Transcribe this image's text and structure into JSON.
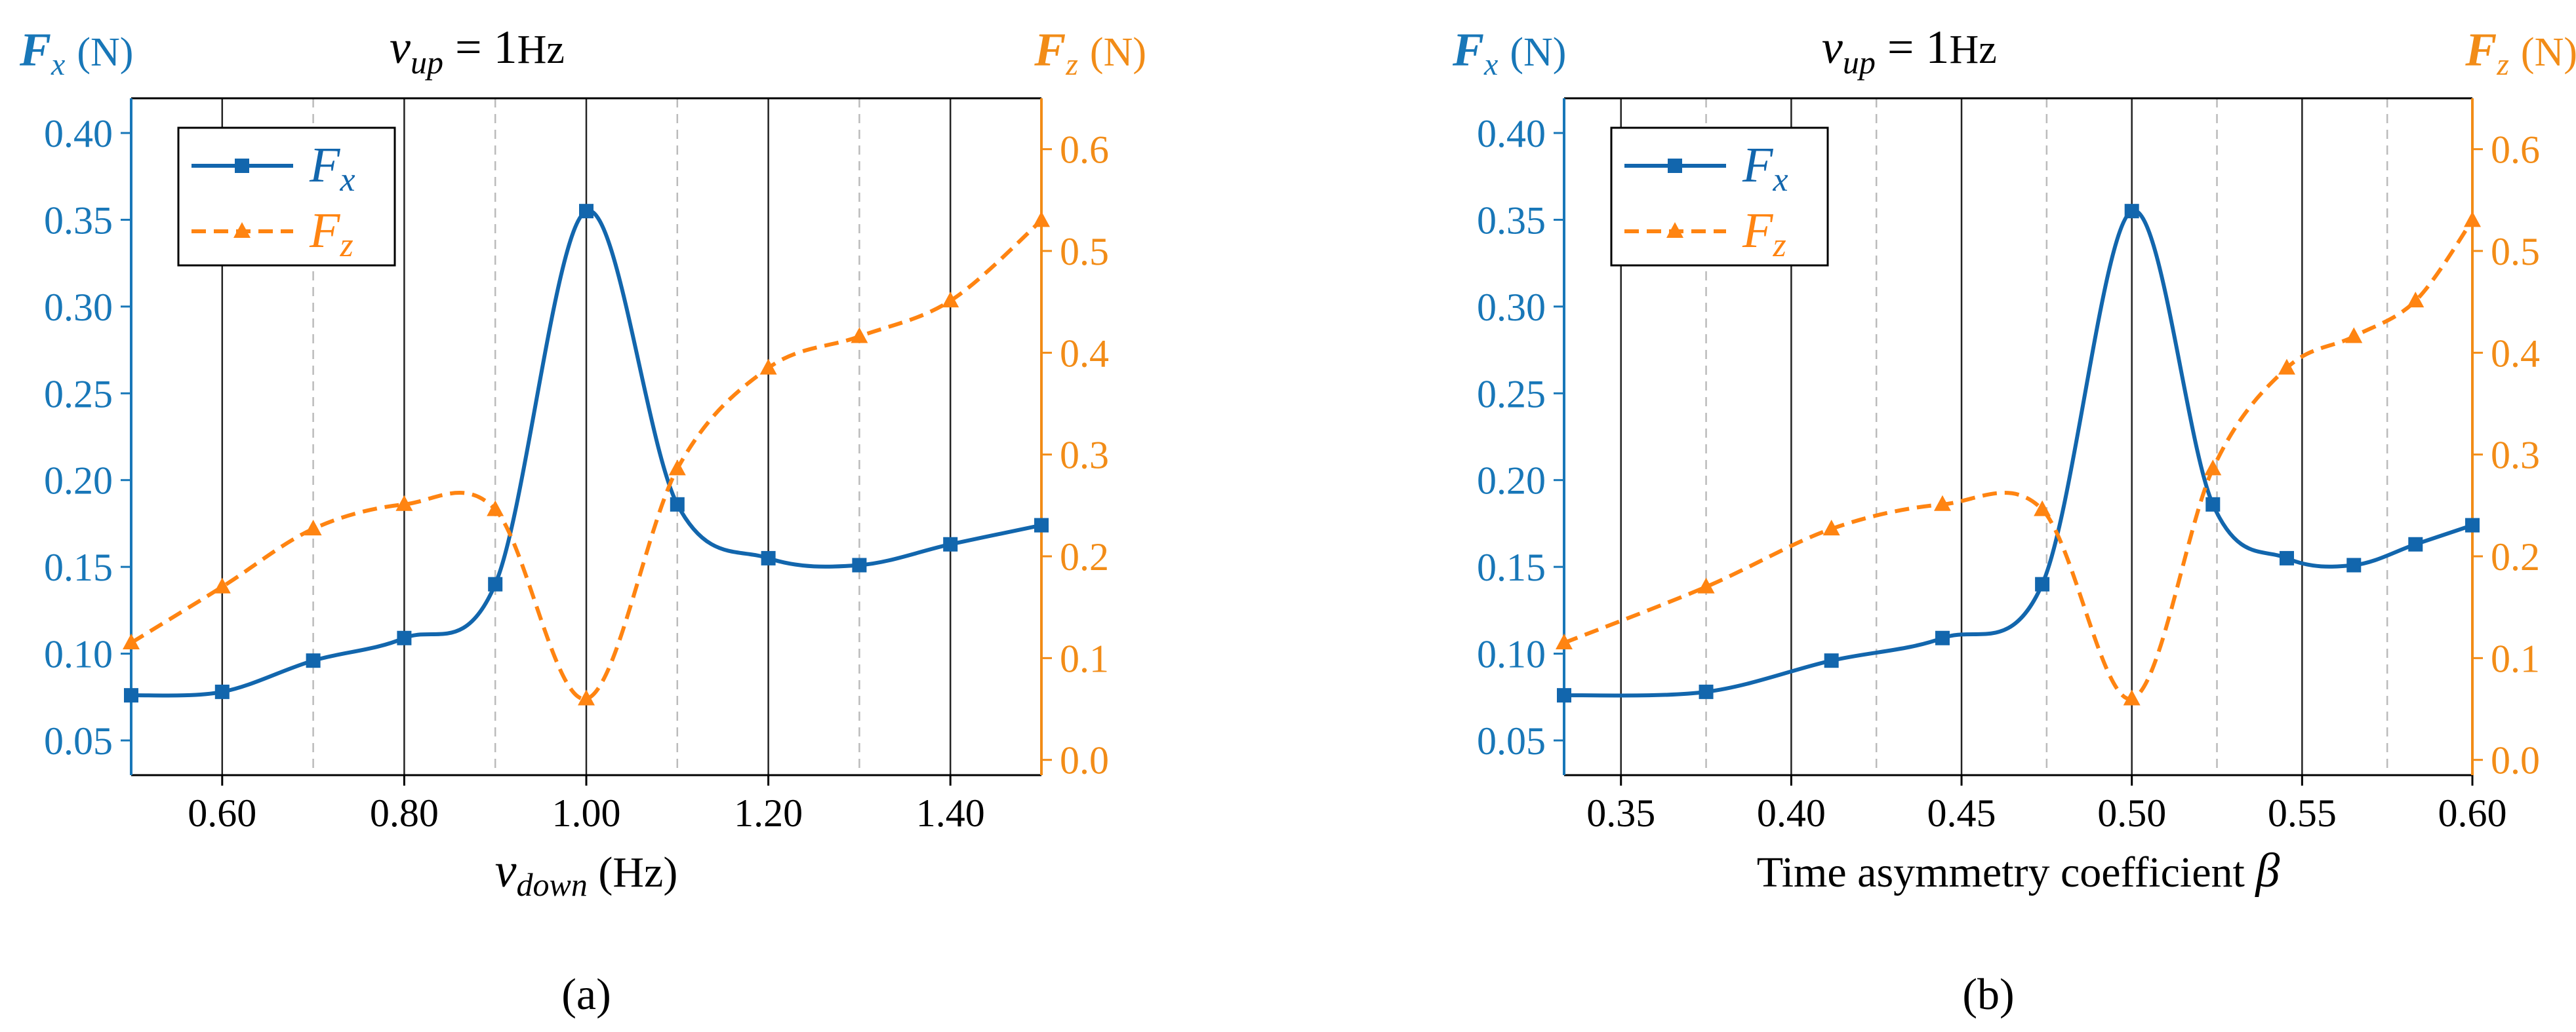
{
  "colors": {
    "fx": "#1266ad",
    "fz": "#ff8411",
    "left_axis": "#1877b8",
    "right_axis": "#f28c17",
    "grid_solid": "#222222",
    "grid_dashed": "#bbbbbb"
  },
  "chart_data": [
    {
      "panel_label": "(a)",
      "type": "line",
      "title_var": "v",
      "title_sub": "up",
      "title_rest": " = 1",
      "title_unit": "Hz",
      "xlabel_var": "v",
      "xlabel_sub": "down",
      "xlabel_unit": " (Hz)",
      "xlim": [
        0.5,
        1.5
      ],
      "x_ticks": [
        0.6,
        0.8,
        1.0,
        1.2,
        1.4
      ],
      "x_tick_labels": [
        "0.60",
        "0.80",
        "1.00",
        "1.20",
        "1.40"
      ],
      "grid_solid": [
        0.6,
        0.8,
        1.0,
        1.2,
        1.4
      ],
      "grid_dashed": [
        0.7,
        0.9,
        1.1,
        1.3
      ],
      "y_left": {
        "label_var": "F",
        "label_sub": "x",
        "label_unit": "(N)",
        "lim": [
          0.03,
          0.42
        ],
        "ticks": [
          0.05,
          0.1,
          0.15,
          0.2,
          0.25,
          0.3,
          0.35,
          0.4
        ],
        "tick_labels": [
          "0.05",
          "0.10",
          "0.15",
          "0.20",
          "0.25",
          "0.30",
          "0.35",
          "0.40"
        ]
      },
      "y_right": {
        "label_var": "F",
        "label_sub": "z",
        "label_unit": "(N)",
        "lim": [
          -0.015,
          0.65
        ],
        "ticks": [
          0.0,
          0.1,
          0.2,
          0.3,
          0.4,
          0.5,
          0.6
        ],
        "tick_labels": [
          "0.0",
          "0.1",
          "0.2",
          "0.3",
          "0.4",
          "0.5",
          "0.6"
        ]
      },
      "series": [
        {
          "name": "F",
          "sub": "x",
          "axis": "left",
          "marker": "square",
          "dash": "solid",
          "x": [
            0.5,
            0.6,
            0.7,
            0.8,
            0.9,
            1.0,
            1.1,
            1.2,
            1.3,
            1.4,
            1.5
          ],
          "values": [
            0.076,
            0.078,
            0.096,
            0.109,
            0.14,
            0.355,
            0.186,
            0.155,
            0.151,
            0.163,
            0.174
          ]
        },
        {
          "name": "F",
          "sub": "z",
          "axis": "right",
          "marker": "triangle",
          "dash": "dashed",
          "x": [
            0.5,
            0.6,
            0.7,
            0.8,
            0.9,
            1.0,
            1.1,
            1.2,
            1.3,
            1.4,
            1.5
          ],
          "values": [
            0.115,
            0.17,
            0.227,
            0.251,
            0.246,
            0.06,
            0.286,
            0.385,
            0.416,
            0.451,
            0.53
          ]
        }
      ],
      "legend_position": "top-left"
    },
    {
      "panel_label": "(b)",
      "type": "line",
      "title_var": "v",
      "title_sub": "up",
      "title_rest": " = 1",
      "title_unit": "Hz",
      "xlabel_text": "Time asymmetry coefficient ",
      "xlabel_symbol": "β",
      "xlim": [
        0.3333,
        0.6
      ],
      "x_ticks": [
        0.35,
        0.4,
        0.45,
        0.5,
        0.55,
        0.6
      ],
      "x_tick_labels": [
        "0.35",
        "0.40",
        "0.45",
        "0.50",
        "0.55",
        "0.60"
      ],
      "grid_solid": [
        0.35,
        0.4,
        0.45,
        0.5,
        0.55
      ],
      "grid_dashed": [
        0.375,
        0.425,
        0.475,
        0.525,
        0.575
      ],
      "y_left": {
        "label_var": "F",
        "label_sub": "x",
        "label_unit": "(N)",
        "lim": [
          0.03,
          0.42
        ],
        "ticks": [
          0.05,
          0.1,
          0.15,
          0.2,
          0.25,
          0.3,
          0.35,
          0.4
        ],
        "tick_labels": [
          "0.05",
          "0.10",
          "0.15",
          "0.20",
          "0.25",
          "0.30",
          "0.35",
          "0.40"
        ]
      },
      "y_right": {
        "label_var": "F",
        "label_sub": "z",
        "label_unit": "(N)",
        "lim": [
          -0.015,
          0.65
        ],
        "ticks": [
          0.0,
          0.1,
          0.2,
          0.3,
          0.4,
          0.5,
          0.6
        ],
        "tick_labels": [
          "0.0",
          "0.1",
          "0.2",
          "0.3",
          "0.4",
          "0.5",
          "0.6"
        ]
      },
      "series": [
        {
          "name": "F",
          "sub": "x",
          "axis": "left",
          "marker": "square",
          "dash": "solid",
          "x": [
            0.3333,
            0.375,
            0.4118,
            0.4444,
            0.4737,
            0.5,
            0.5238,
            0.5455,
            0.5652,
            0.5833,
            0.6
          ],
          "values": [
            0.076,
            0.078,
            0.096,
            0.109,
            0.14,
            0.355,
            0.186,
            0.155,
            0.151,
            0.163,
            0.174
          ]
        },
        {
          "name": "F",
          "sub": "z",
          "axis": "right",
          "marker": "triangle",
          "dash": "dashed",
          "x": [
            0.3333,
            0.375,
            0.4118,
            0.4444,
            0.4737,
            0.5,
            0.5238,
            0.5455,
            0.5652,
            0.5833,
            0.6
          ],
          "values": [
            0.115,
            0.17,
            0.227,
            0.251,
            0.246,
            0.06,
            0.286,
            0.385,
            0.416,
            0.451,
            0.53
          ]
        }
      ],
      "legend_position": "top-left"
    }
  ]
}
